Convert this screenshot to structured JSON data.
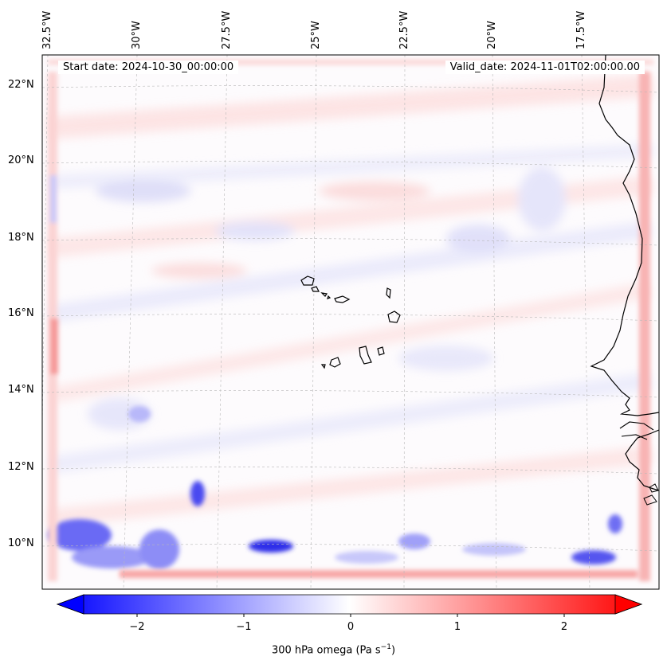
{
  "header": {
    "start_date": "Start date: 2024-10-30_00:00:00",
    "valid_date": "Valid_date: 2024-11-01T02:00:00.00"
  },
  "axes": {
    "lon_labels": [
      "32.5°W",
      "30°W",
      "27.5°W",
      "25°W",
      "22.5°W",
      "20°W",
      "17.5°W"
    ],
    "lat_labels": [
      "22°N",
      "20°N",
      "18°N",
      "16°N",
      "14°N",
      "12°N",
      "10°N"
    ]
  },
  "colorbar": {
    "label_prefix": "300 hPa omega (Pa s",
    "label_exp": "−1",
    "label_suffix": ")",
    "ticks": [
      "−2",
      "−1",
      "0",
      "1",
      "2"
    ],
    "range": [
      -2.7,
      2.7
    ],
    "colormap": "bwr",
    "extend": "both"
  },
  "colors": {
    "negative": "#0000ff",
    "neutral": "#ffffff",
    "positive": "#ff0000",
    "coastline": "#000000",
    "gridline": "#b0b0b0"
  }
}
